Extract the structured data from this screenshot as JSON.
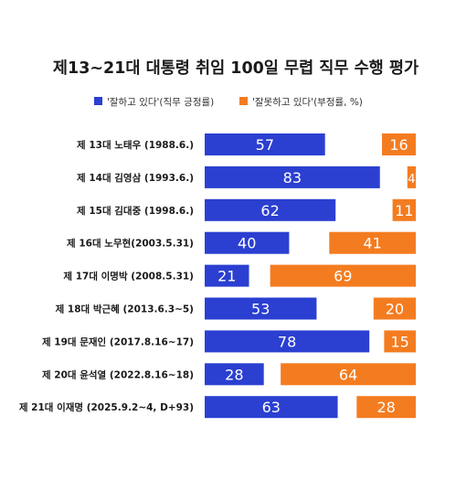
{
  "chart_data": {
    "type": "bar",
    "title": "제13~21대 대통령 취임 100일 무렵 직무 수행 평가",
    "legend_placement": "top",
    "series": [
      {
        "name": "'잘하고 있다'(직무 긍정률)",
        "color": "#2b3fd1",
        "values": [
          57,
          83,
          62,
          40,
          21,
          53,
          78,
          28,
          63
        ]
      },
      {
        "name": "'잘못하고 있다'(부정률, %)",
        "color": "#f47c20",
        "values": [
          16,
          4,
          11,
          41,
          69,
          20,
          15,
          64,
          28
        ]
      }
    ],
    "categories": [
      "제 13대 노태우 (1988.6.)",
      "제 14대 김영삼 (1993.6.)",
      "제 15대 김대중 (1998.6.)",
      "제 16대 노무현(2003.5.31)",
      "제 17대 이명박 (2008.5.31)",
      "제 18대 박근혜 (2013.6.3~5)",
      "제 19대 문재인 (2017.8.16~17)",
      "제 20대 윤석열 (2022.8.16~18)",
      "제 21대 이재명 (2025.9.2~4, D+93)"
    ],
    "xlim": [
      0,
      100
    ],
    "grid": false
  }
}
